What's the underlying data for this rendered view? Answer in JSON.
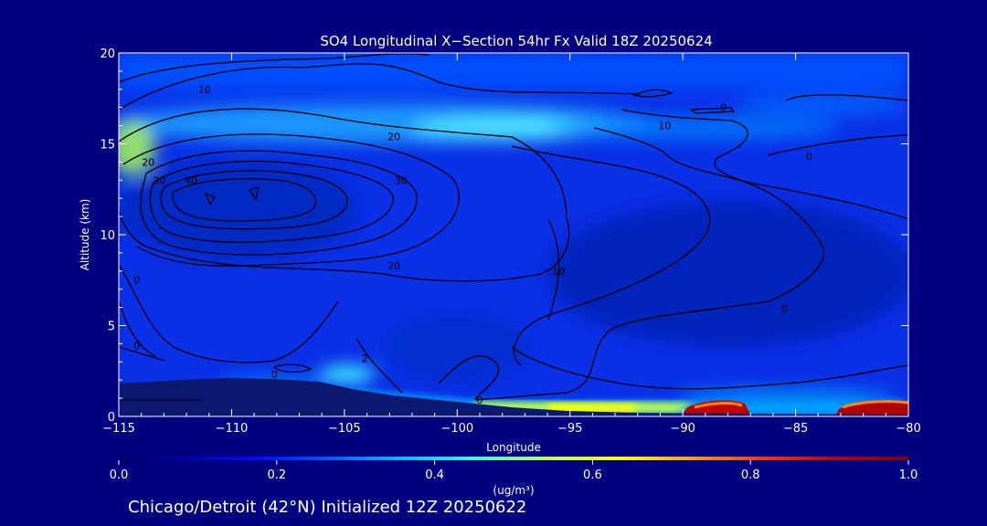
{
  "chart_data": {
    "type": "heatmap",
    "title": "SO4 Longitudinal X−Section 54hr  Fx Valid 18Z 20250624",
    "xlabel": "Longitude",
    "ylabel": "Altitude (km)",
    "xlim": [
      -115,
      -80
    ],
    "ylim": [
      0,
      20
    ],
    "x_ticks": [
      -115,
      -110,
      -105,
      -100,
      -95,
      -90,
      -85,
      -80
    ],
    "x_tick_labels": [
      "−115",
      "−110",
      "−105",
      "−100",
      "−95",
      "−90",
      "−85",
      "−80"
    ],
    "y_ticks": [
      0,
      5,
      10,
      15,
      20
    ],
    "y_tick_labels": [
      "0",
      "5",
      "10",
      "15",
      "20"
    ],
    "colorbar": {
      "label": "(ug/m³)",
      "min": 0.0,
      "max": 1.0,
      "ticks": [
        0.0,
        0.2,
        0.4,
        0.6,
        0.8,
        1.0
      ],
      "tick_labels": [
        "0.0",
        "0.2",
        "0.4",
        "0.6",
        "0.8",
        "1.0"
      ],
      "colors": [
        "#000060",
        "#0000b0",
        "#0010ff",
        "#0060ff",
        "#00c0ff",
        "#40ffd0",
        "#c0ff40",
        "#ffff00",
        "#ffa000",
        "#ff3000",
        "#c00000",
        "#800000"
      ]
    },
    "contour_labels": [
      {
        "text": "10",
        "lon": -111.2,
        "alt": 17.8
      },
      {
        "text": "20",
        "lon": -113.7,
        "alt": 13.8
      },
      {
        "text": "30",
        "lon": -113.2,
        "alt": 12.8
      },
      {
        "text": "40",
        "lon": -111.8,
        "alt": 12.8
      },
      {
        "text": "20",
        "lon": -102.8,
        "alt": 15.2
      },
      {
        "text": "30",
        "lon": -102.5,
        "alt": 12.8
      },
      {
        "text": "20",
        "lon": -102.8,
        "alt": 8.1
      },
      {
        "text": "10",
        "lon": -95.5,
        "alt": 7.8
      },
      {
        "text": "10",
        "lon": -90.8,
        "alt": 15.8
      },
      {
        "text": "0",
        "lon": -88.2,
        "alt": 16.8
      },
      {
        "text": "0",
        "lon": -84.4,
        "alt": 14.1
      },
      {
        "text": "0",
        "lon": -85.5,
        "alt": 5.7
      },
      {
        "text": "0",
        "lon": -114.2,
        "alt": 7.3
      },
      {
        "text": "0",
        "lon": -114.2,
        "alt": 3.7
      },
      {
        "text": "2",
        "lon": -104.1,
        "alt": 3.0
      },
      {
        "text": "0",
        "lon": -108.1,
        "alt": 2.1
      },
      {
        "text": "0",
        "lon": -99.0,
        "alt": 0.7
      }
    ],
    "footer": "Chicago/Detroit (42°N) Initialized 12Z 20250622"
  },
  "colors": {
    "background": "#000080",
    "frame": "#ffffff",
    "contour": "#000000"
  }
}
